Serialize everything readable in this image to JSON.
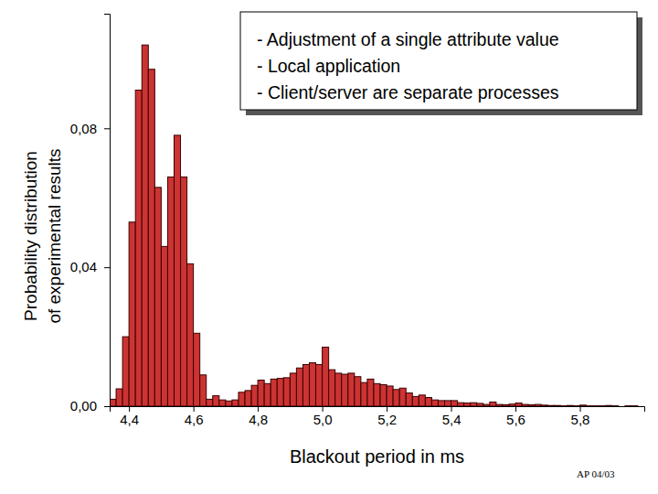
{
  "chart_data": {
    "type": "histogram",
    "xlabel": "Blackout period in ms",
    "ylabel": [
      "Probability distribution",
      "of experimental results"
    ],
    "annotations": [
      "- Adjustment of a single attribute value",
      "- Local application",
      "- Client/server are separate processes"
    ],
    "footnote": "AP 04/03",
    "color": "#cc3333",
    "xlim": [
      4.34,
      6.0
    ],
    "ylim": [
      0,
      0.113
    ],
    "xticks": [
      {
        "value": 4.4,
        "label": "4,4"
      },
      {
        "value": 4.6,
        "label": "4,6"
      },
      {
        "value": 4.8,
        "label": "4,8"
      },
      {
        "value": 5.0,
        "label": "5,0"
      },
      {
        "value": 5.2,
        "label": "5,2"
      },
      {
        "value": 5.4,
        "label": "5,4"
      },
      {
        "value": 5.6,
        "label": "5,6"
      },
      {
        "value": 5.8,
        "label": "5,8"
      }
    ],
    "yticks": [
      {
        "value": 0,
        "label": "0,00"
      },
      {
        "value": 0.04,
        "label": "0,04"
      },
      {
        "value": 0.08,
        "label": "0,08"
      }
    ],
    "bins": [
      4.34,
      4.36,
      4.38,
      4.4,
      4.42,
      4.44,
      4.46,
      4.48,
      4.5,
      4.52,
      4.54,
      4.56,
      4.58,
      4.6,
      4.62,
      4.64,
      4.66,
      4.68,
      4.7,
      4.72,
      4.74,
      4.76,
      4.78,
      4.8,
      4.82,
      4.84,
      4.86,
      4.88,
      4.9,
      4.92,
      4.94,
      4.96,
      4.98,
      5.0,
      5.02,
      5.04,
      5.06,
      5.08,
      5.1,
      5.12,
      5.14,
      5.16,
      5.18,
      5.2,
      5.22,
      5.24,
      5.26,
      5.28,
      5.3,
      5.32,
      5.34,
      5.36,
      5.38,
      5.4,
      5.42,
      5.44,
      5.46,
      5.48,
      5.5,
      5.52,
      5.54,
      5.56,
      5.58,
      5.6,
      5.62,
      5.64,
      5.66,
      5.68,
      5.7,
      5.72,
      5.74,
      5.76,
      5.78,
      5.8,
      5.82,
      5.84,
      5.86,
      5.88,
      5.9,
      5.92,
      5.94,
      5.96,
      5.98,
      6.0
    ],
    "values": [
      0.002,
      0.005,
      0.02,
      0.053,
      0.091,
      0.104,
      0.097,
      0.063,
      0.046,
      0.066,
      0.078,
      0.066,
      0.041,
      0.021,
      0.009,
      0.002,
      0.003,
      0.0018,
      0.0015,
      0.0018,
      0.004,
      0.0045,
      0.006,
      0.0075,
      0.0065,
      0.0078,
      0.008,
      0.0082,
      0.0095,
      0.011,
      0.012,
      0.0125,
      0.012,
      0.017,
      0.0105,
      0.0095,
      0.0092,
      0.0095,
      0.0085,
      0.0068,
      0.0078,
      0.0065,
      0.0062,
      0.0058,
      0.0048,
      0.0052,
      0.0038,
      0.0028,
      0.0032,
      0.0025,
      0.0018,
      0.0016,
      0.0016,
      0.0016,
      0.001,
      0.0009,
      0.001,
      0.0008,
      0.0005,
      0.0012,
      0.0005,
      0.0004,
      0.0006,
      0.0009,
      0.0005,
      0.0004,
      0.0005,
      0.0003,
      0.0002,
      0.0002,
      0.0001,
      0.0002,
      0.0001,
      0.0003,
      0.0001,
      0.0001,
      0.0001,
      0.0002,
      0.0001,
      0,
      0.0001,
      0.0001,
      0
    ]
  }
}
